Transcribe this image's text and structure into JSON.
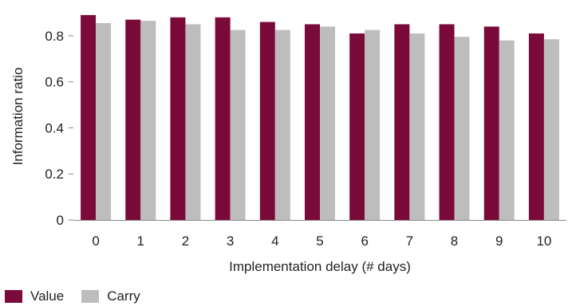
{
  "chart_data": {
    "type": "bar",
    "title": "",
    "xlabel": "Implementation delay (# days)",
    "ylabel": "Information ratio",
    "categories": [
      "0",
      "1",
      "2",
      "3",
      "4",
      "5",
      "6",
      "7",
      "8",
      "9",
      "10"
    ],
    "series": [
      {
        "name": "Value",
        "color": "#7a0a3a",
        "values": [
          0.89,
          0.87,
          0.88,
          0.88,
          0.86,
          0.85,
          0.81,
          0.85,
          0.85,
          0.84,
          0.81
        ]
      },
      {
        "name": "Carry",
        "color": "#bdbdbd",
        "values": [
          0.855,
          0.865,
          0.85,
          0.825,
          0.825,
          0.84,
          0.825,
          0.81,
          0.795,
          0.78,
          0.785
        ]
      }
    ],
    "ylim": [
      0,
      0.9
    ],
    "yticks": [
      "0",
      "0.2",
      "0.4",
      "0.6",
      "0.8"
    ],
    "grid": false,
    "legend": "bottom-left"
  }
}
